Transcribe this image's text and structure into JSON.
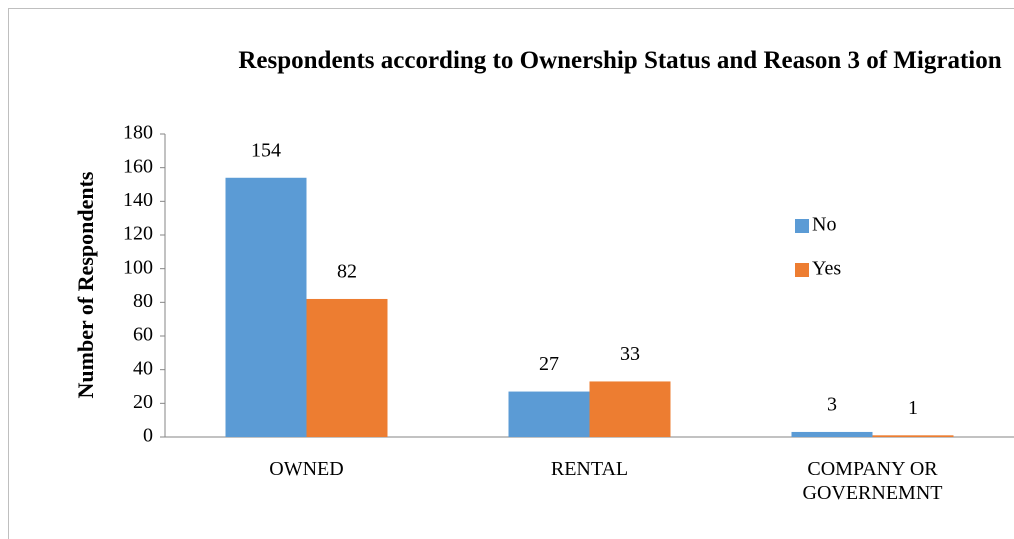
{
  "chart_data": {
    "type": "bar",
    "title": "Respondents according to Ownership Status and Reason 3 of Migration",
    "y_label": "Number of Respondents",
    "categories": [
      "OWNED",
      "RENTAL",
      "COMPANY OR GOVERNEMNT"
    ],
    "series": [
      {
        "name": "No",
        "color": "#5b9bd5",
        "values": [
          154,
          27,
          3
        ]
      },
      {
        "name": "Yes",
        "color": "#ed7d31",
        "values": [
          82,
          33,
          1
        ]
      }
    ],
    "ylim": [
      0,
      180
    ],
    "yticks": [
      0,
      20,
      40,
      60,
      80,
      100,
      120,
      140,
      160,
      180
    ],
    "grid": false,
    "legend": "right"
  }
}
